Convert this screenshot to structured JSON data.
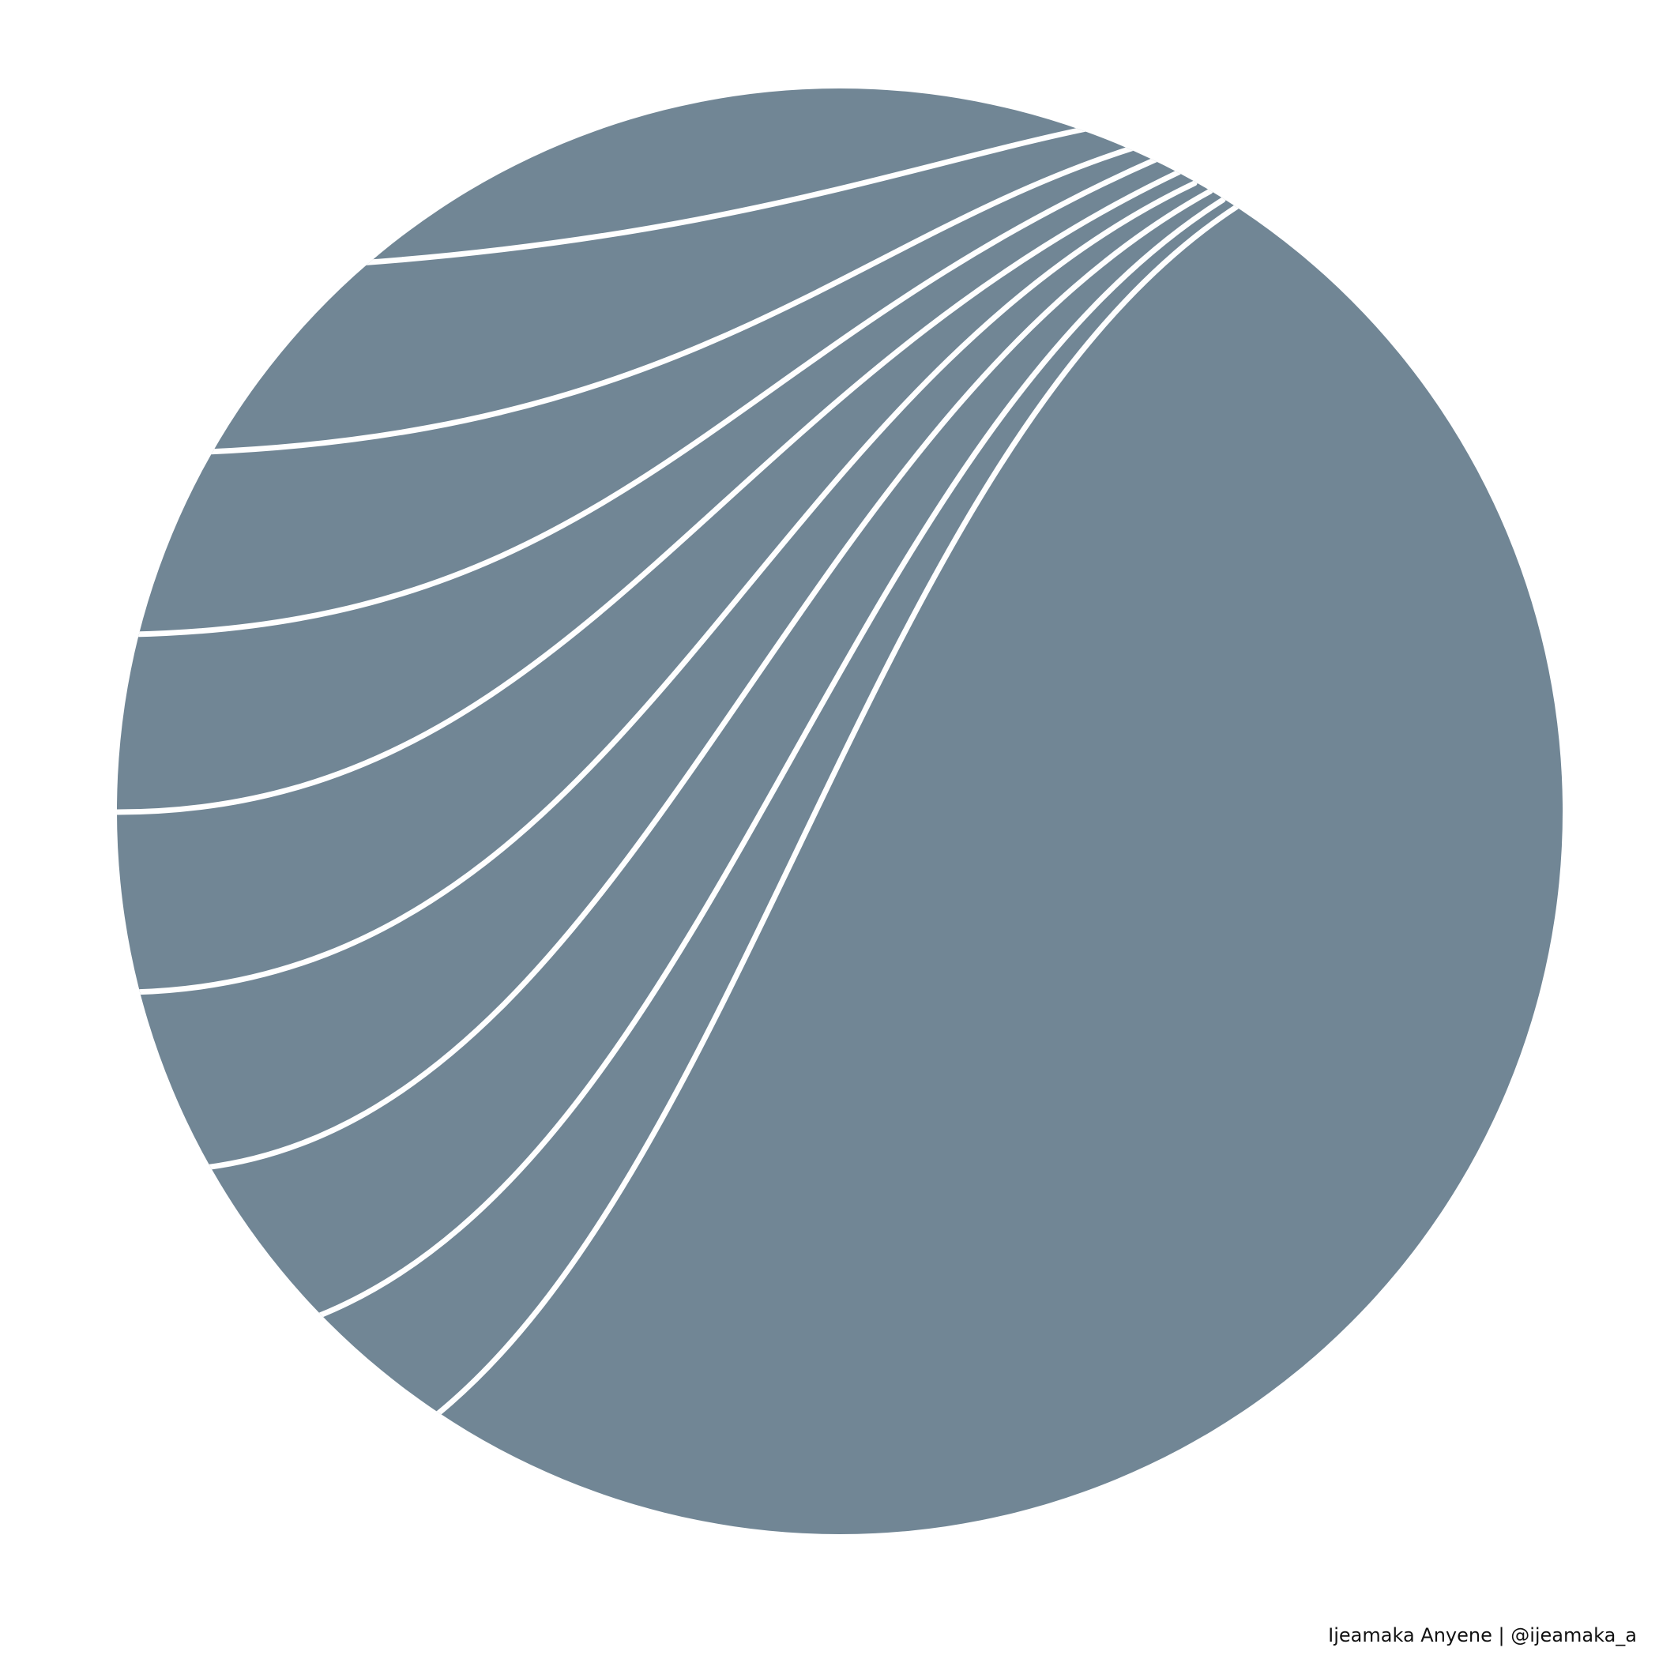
{
  "artwork": {
    "fill_color": "#718695",
    "line_color": "#ffffff",
    "background_color": "#ffffff",
    "band_count": 9
  },
  "credit": {
    "text": "Ijeamaka Anyene | @ijeamaka_a"
  }
}
